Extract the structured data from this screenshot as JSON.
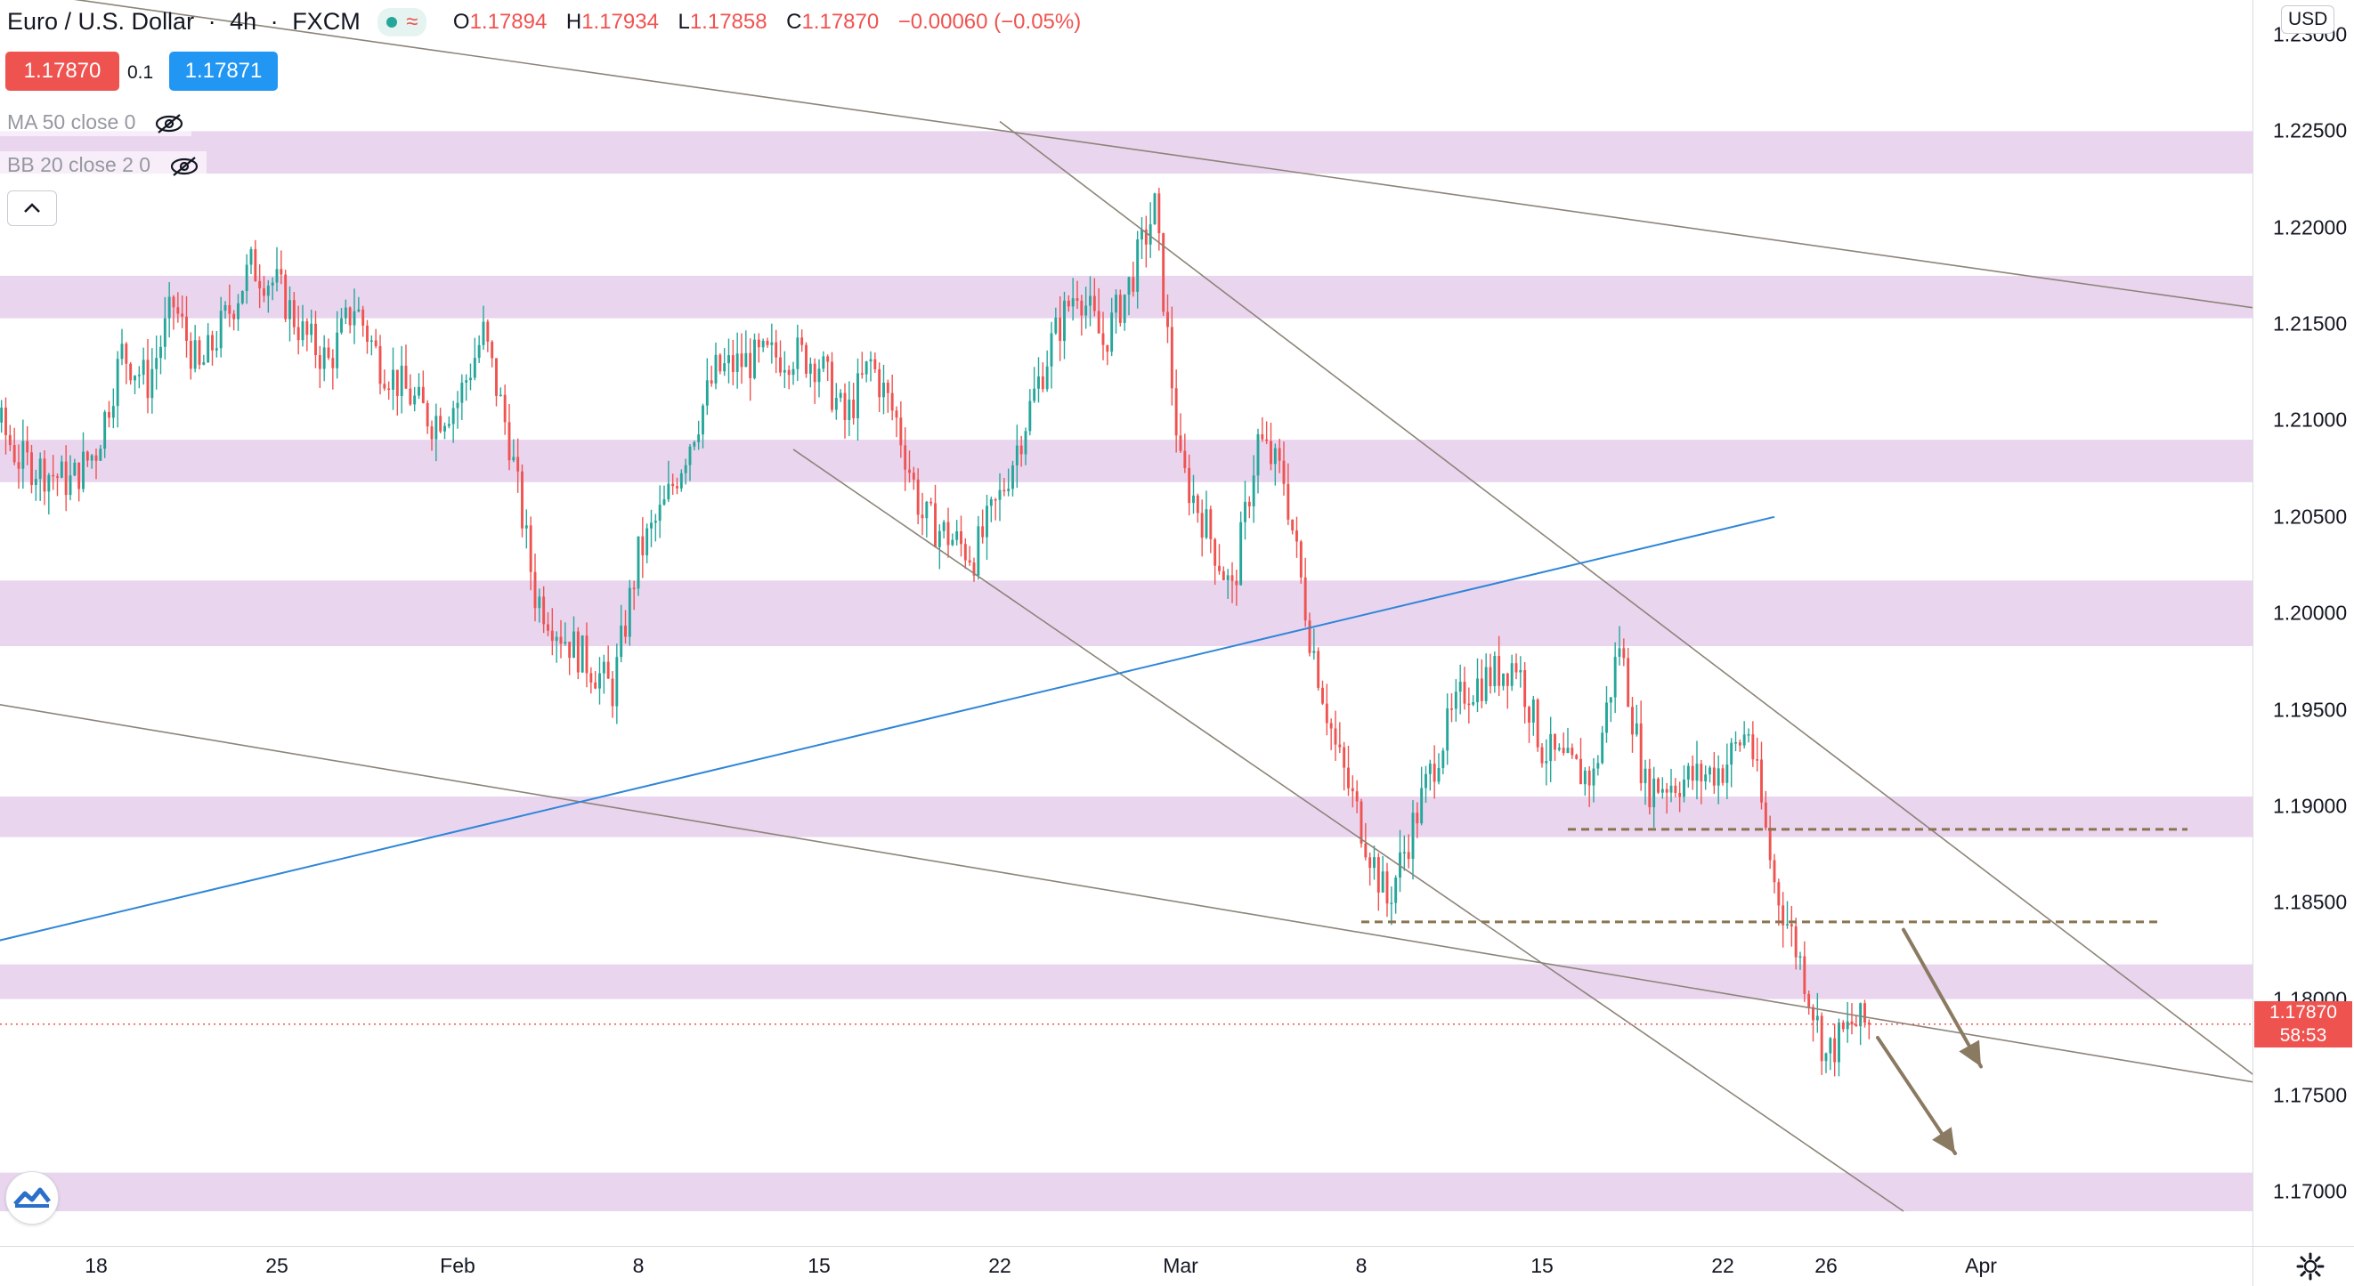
{
  "header": {
    "symbol": "Euro / U.S. Dollar",
    "timeframe": "4h",
    "exchange": "FXCM",
    "ohlc": {
      "open_label": "O",
      "open": "1.17894",
      "high_label": "H",
      "high": "1.17934",
      "low_label": "L",
      "low": "1.17858",
      "close_label": "C",
      "close": "1.17870",
      "change": "−0.00060 (−0.05%)"
    },
    "bid": "1.17870",
    "spread": "0.1",
    "ask": "1.17871"
  },
  "indicators": [
    {
      "label": "MA 50 close 0"
    },
    {
      "label": "BB 20 close 2 0"
    }
  ],
  "price_axis": {
    "currency": "USD",
    "current_price": "1.17870",
    "countdown": "58:53"
  },
  "colors": {
    "up": "#26a69a",
    "down": "#ef5350",
    "zone": "#e1c3e8",
    "trendline": "#8c8478",
    "blue_line": "#2f86d8",
    "level": "#8a7350",
    "arrow": "#8a7a62"
  },
  "chart_data": {
    "type": "candlestick",
    "instrument": "Euro / U.S. Dollar",
    "interval": "4h",
    "ylim": [
      1.1672,
      1.2318
    ],
    "yticks": [
      1.23,
      1.225,
      1.22,
      1.215,
      1.21,
      1.205,
      1.2,
      1.195,
      1.19,
      1.185,
      1.18,
      1.175,
      1.17
    ],
    "xticks": [
      {
        "label": "18",
        "date": "2021-01-18"
      },
      {
        "label": "25",
        "date": "2021-01-25"
      },
      {
        "label": "Feb",
        "date": "2021-02-01"
      },
      {
        "label": "8",
        "date": "2021-02-08"
      },
      {
        "label": "15",
        "date": "2021-02-15"
      },
      {
        "label": "22",
        "date": "2021-02-22"
      },
      {
        "label": "Mar",
        "date": "2021-03-01"
      },
      {
        "label": "8",
        "date": "2021-03-08"
      },
      {
        "label": "15",
        "date": "2021-03-15"
      },
      {
        "label": "22",
        "date": "2021-03-22"
      },
      {
        "label": "26",
        "date": "2021-03-26"
      },
      {
        "label": "Apr",
        "date": "2021-04-01"
      }
    ],
    "price_path": [
      [
        "2021-01-11",
        1.2165
      ],
      [
        "2021-01-12",
        1.215
      ],
      [
        "2021-01-13",
        1.2155
      ],
      [
        "2021-01-14",
        1.2105
      ],
      [
        "2021-01-15",
        1.208
      ],
      [
        "2021-01-17",
        1.2068
      ],
      [
        "2021-01-18",
        1.2085
      ],
      [
        "2021-01-19",
        1.2135
      ],
      [
        "2021-01-20",
        1.212
      ],
      [
        "2021-01-21",
        1.216
      ],
      [
        "2021-01-22",
        1.2125
      ],
      [
        "2021-01-24",
        1.218
      ],
      [
        "2021-01-25",
        1.217
      ],
      [
        "2021-01-26",
        1.2145
      ],
      [
        "2021-01-27",
        1.213
      ],
      [
        "2021-01-28",
        1.216
      ],
      [
        "2021-01-29",
        1.213
      ],
      [
        "2021-01-31",
        1.21
      ],
      [
        "2021-02-01",
        1.211
      ],
      [
        "2021-02-02",
        1.2145
      ],
      [
        "2021-02-03",
        1.209
      ],
      [
        "2021-02-04",
        1.201
      ],
      [
        "2021-02-05",
        1.199
      ],
      [
        "2021-02-06",
        1.1975
      ],
      [
        "2021-02-07",
        1.196
      ],
      [
        "2021-02-08",
        1.203
      ],
      [
        "2021-02-09",
        1.2055
      ],
      [
        "2021-02-10",
        1.209
      ],
      [
        "2021-02-11",
        1.2125
      ],
      [
        "2021-02-12",
        1.213
      ],
      [
        "2021-02-14",
        1.2135
      ],
      [
        "2021-02-15",
        1.213
      ],
      [
        "2021-02-16",
        1.21
      ],
      [
        "2021-02-17",
        1.213
      ],
      [
        "2021-02-18",
        1.21
      ],
      [
        "2021-02-19",
        1.205
      ],
      [
        "2021-02-21",
        1.203
      ],
      [
        "2021-02-22",
        1.206
      ],
      [
        "2021-02-23",
        1.21
      ],
      [
        "2021-02-24",
        1.214
      ],
      [
        "2021-02-25",
        1.217
      ],
      [
        "2021-02-26",
        1.214
      ],
      [
        "2021-02-27",
        1.217
      ],
      [
        "2021-02-28",
        1.221
      ],
      [
        "2021-03-01",
        1.2075
      ],
      [
        "2021-03-02",
        1.2045
      ],
      [
        "2021-03-03",
        1.201
      ],
      [
        "2021-03-04",
        1.209
      ],
      [
        "2021-03-05",
        1.207
      ],
      [
        "2021-03-06",
        1.199
      ],
      [
        "2021-03-07",
        1.193
      ],
      [
        "2021-03-08",
        1.189
      ],
      [
        "2021-03-09",
        1.185
      ],
      [
        "2021-03-10",
        1.189
      ],
      [
        "2021-03-11",
        1.193
      ],
      [
        "2021-03-12",
        1.196
      ],
      [
        "2021-03-14",
        1.1975
      ],
      [
        "2021-03-15",
        1.193
      ],
      [
        "2021-03-16",
        1.192
      ],
      [
        "2021-03-17",
        1.1915
      ],
      [
        "2021-03-18",
        1.1985
      ],
      [
        "2021-03-19",
        1.191
      ],
      [
        "2021-03-21",
        1.1915
      ],
      [
        "2021-03-22",
        1.192
      ],
      [
        "2021-03-23",
        1.194
      ],
      [
        "2021-03-24",
        1.186
      ],
      [
        "2021-03-25",
        1.182
      ],
      [
        "2021-03-26",
        1.177
      ],
      [
        "2021-03-27",
        1.1787
      ]
    ],
    "zones": [
      {
        "low": 1.2228,
        "high": 1.225
      },
      {
        "low": 1.2153,
        "high": 1.2175
      },
      {
        "low": 1.2068,
        "high": 1.209
      },
      {
        "low": 1.1983,
        "high": 1.2017
      },
      {
        "low": 1.1884,
        "high": 1.1905
      },
      {
        "low": 1.18,
        "high": 1.1818
      },
      {
        "low": 1.169,
        "high": 1.171
      }
    ],
    "trendlines": [
      {
        "from": [
          "2021-01-11",
          1.233
        ],
        "to": [
          "2021-04-16",
          1.215
        ],
        "color": "trendline"
      },
      {
        "from": [
          "2021-02-22",
          1.2255
        ],
        "to": [
          "2021-04-13",
          1.1746
        ],
        "color": "trendline"
      },
      {
        "from": [
          "2021-02-14",
          1.2085
        ],
        "to": [
          "2021-03-29",
          1.169
        ],
        "color": "trendline"
      },
      {
        "from": [
          "2021-01-11",
          1.196
        ],
        "to": [
          "2021-04-16",
          1.1747
        ],
        "color": "trendline"
      },
      {
        "from": [
          "2021-01-11",
          1.182
        ],
        "to": [
          "2021-03-24",
          1.205
        ],
        "color": "blue_line"
      }
    ],
    "levels": [
      {
        "price": 1.1888,
        "from": "2021-03-16",
        "to": "2021-04-09"
      },
      {
        "price": 1.184,
        "from": "2021-03-08",
        "to": "2021-04-08"
      }
    ],
    "arrows": [
      {
        "from": [
          "2021-03-29",
          1.1836
        ],
        "to": [
          "2021-04-01",
          1.1765
        ]
      },
      {
        "from": [
          "2021-03-28",
          1.178
        ],
        "to": [
          "2021-03-31",
          1.172
        ]
      }
    ],
    "last_price": 1.1787
  }
}
